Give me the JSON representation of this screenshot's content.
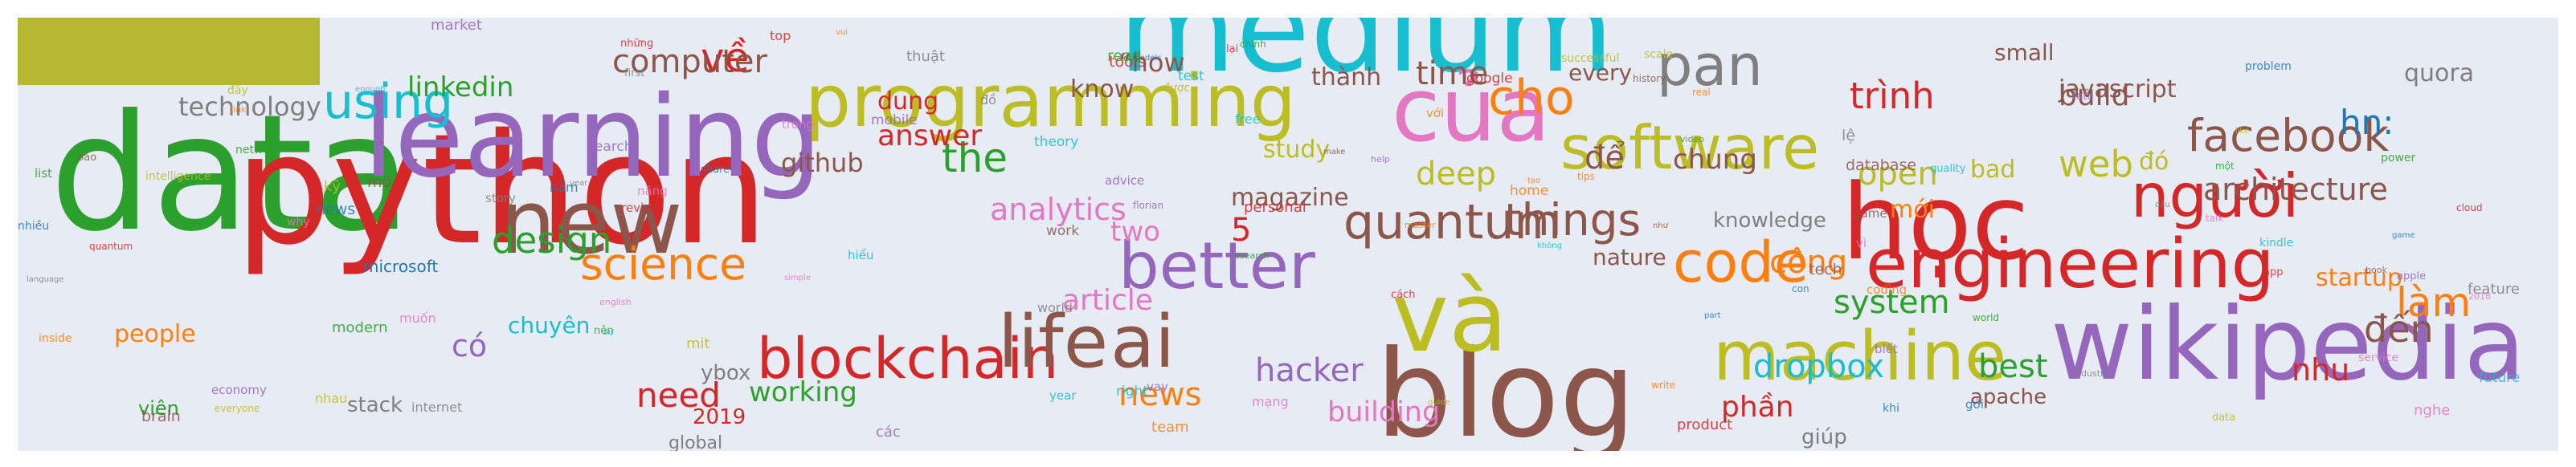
{
  "palette": {
    "background": "#e7ebf4",
    "swatch": "#b6b834",
    "colors": [
      "#2ca02c",
      "#d62728",
      "#9467bd",
      "#17becf",
      "#bcbd22",
      "#e377c2",
      "#ff7f0e",
      "#8c564b",
      "#1f77b4",
      "#7f7f7f"
    ]
  },
  "cloud": {
    "words": [
      {
        "text": "data",
        "color": "#2ca02c"
      },
      {
        "text": "python",
        "color": "#d62728"
      },
      {
        "text": "learning",
        "color": "#9467bd"
      },
      {
        "text": "medium",
        "color": "#17becf"
      },
      {
        "text": "blog",
        "color": "#8c564b"
      },
      {
        "text": "wikipedia",
        "color": "#9467bd"
      },
      {
        "text": "học",
        "color": "#d62728"
      },
      {
        "text": "và",
        "color": "#bcbd22"
      },
      {
        "text": "của",
        "color": "#e377c2"
      },
      {
        "text": "new",
        "color": "#8c564b"
      },
      {
        "text": "programming",
        "color": "#bcbd22"
      },
      {
        "text": "engineering",
        "color": "#d62728"
      },
      {
        "text": "machine",
        "color": "#bcbd22"
      },
      {
        "text": "blockchain",
        "color": "#d62728"
      },
      {
        "text": "life",
        "color": "#8c564b"
      },
      {
        "text": "ai",
        "color": "#8c564b"
      },
      {
        "text": "better",
        "color": "#9467bd"
      },
      {
        "text": "code",
        "color": "#ff7f0e"
      },
      {
        "text": "software",
        "color": "#bcbd22"
      },
      {
        "text": "người",
        "color": "#d62728"
      },
      {
        "text": "facebook",
        "color": "#8c564b"
      },
      {
        "text": "quantum",
        "color": "#8c564b"
      },
      {
        "text": "science",
        "color": "#ff7f0e"
      },
      {
        "text": "using",
        "color": "#17becf"
      },
      {
        "text": "design",
        "color": "#2ca02c"
      },
      {
        "text": "web",
        "color": "#bcbd22"
      },
      {
        "text": "system",
        "color": "#2ca02c"
      },
      {
        "text": "hacker",
        "color": "#9467bd"
      },
      {
        "text": "building",
        "color": "#e377c2"
      },
      {
        "text": "về",
        "color": "#d62728"
      },
      {
        "text": "computer",
        "color": "#8c564b"
      },
      {
        "text": "pan",
        "color": "#7f7f7f"
      },
      {
        "text": "time",
        "color": "#8c564b"
      },
      {
        "text": "cho",
        "color": "#ff7f0e"
      },
      {
        "text": "deep",
        "color": "#bcbd22"
      },
      {
        "text": "things",
        "color": "#8c564b"
      },
      {
        "text": "the",
        "color": "#2ca02c"
      },
      {
        "text": "technology",
        "color": "#7f7f7f"
      },
      {
        "text": "linkedin",
        "color": "#2ca02c"
      },
      {
        "text": "answer",
        "color": "#d62728"
      },
      {
        "text": "github",
        "color": "#8c564b"
      },
      {
        "text": "need",
        "color": "#d62728"
      },
      {
        "text": "working",
        "color": "#2ca02c"
      },
      {
        "text": "trình",
        "color": "#d62728"
      },
      {
        "text": "build",
        "color": "#8c564b"
      },
      {
        "text": "javascript",
        "color": "#8c564b"
      },
      {
        "text": "quora",
        "color": "#7f7f7f"
      },
      {
        "text": "architecture",
        "color": "#8c564b"
      },
      {
        "text": "dropbox",
        "color": "#17becf"
      },
      {
        "text": "phần",
        "color": "#d62728"
      },
      {
        "text": "làm",
        "color": "#ff7f0e"
      },
      {
        "text": "đến",
        "color": "#8c564b"
      },
      {
        "text": "nhu",
        "color": "#d62728"
      },
      {
        "text": "analytics",
        "color": "#e377c2"
      },
      {
        "text": "article",
        "color": "#e377c2"
      },
      {
        "text": "news",
        "color": "#ff7f0e"
      },
      {
        "text": "open",
        "color": "#bcbd22"
      },
      {
        "text": "công",
        "color": "#ff7f0e"
      },
      {
        "text": "chung",
        "color": "#8c564b"
      },
      {
        "text": "để",
        "color": "#8c564b"
      },
      {
        "text": "best",
        "color": "#2ca02c"
      },
      {
        "text": "people",
        "color": "#ff7f0e"
      },
      {
        "text": "startup",
        "color": "#ff7f0e"
      },
      {
        "text": "viên",
        "color": "#2ca02c"
      },
      {
        "text": "chuyên",
        "color": "#17becf"
      },
      {
        "text": "có",
        "color": "#9467bd"
      },
      {
        "text": "two",
        "color": "#e377c2"
      },
      {
        "text": "5",
        "color": "#d62728"
      },
      {
        "text": "magazine",
        "color": "#8c564b"
      },
      {
        "text": "knowledge",
        "color": "#7f7f7f"
      },
      {
        "text": "nature",
        "color": "#8c564b"
      },
      {
        "text": "dung",
        "color": "#d62728"
      },
      {
        "text": "know",
        "color": "#8c564b"
      },
      {
        "text": "study",
        "color": "#bcbd22"
      },
      {
        "text": "thành",
        "color": "#8c564b"
      },
      {
        "text": "“how",
        "color": "#8c564b"
      },
      {
        "text": "every",
        "color": "#8c564b"
      },
      {
        "text": "small",
        "color": "#8c564b"
      },
      {
        "text": "global",
        "color": "#7f7f7f"
      },
      {
        "text": "bad",
        "color": "#bcbd22"
      },
      {
        "text": "mới",
        "color": "#ff7f0e"
      },
      {
        "text": "microsoft",
        "color": "#1f77b4"
      },
      {
        "text": "stack",
        "color": "#7f7f7f"
      },
      {
        "text": "2019",
        "color": "#d62728"
      },
      {
        "text": "ybox",
        "color": "#7f7f7f"
      },
      {
        "text": "apache",
        "color": "#8c564b"
      },
      {
        "text": "giúp",
        "color": "#7f7f7f"
      },
      {
        "text": "hn:",
        "color": "#1f77b4"
      },
      {
        "text": "đó",
        "color": "#bcbd22"
      }
    ],
    "filler": [
      "research",
      "review",
      "economy",
      "theory",
      "scale",
      "english",
      "master",
      "brain",
      "news",
      "story",
      "video",
      "cloud",
      "help",
      "quality",
      "everyone",
      "talk",
      "home",
      "history",
      "models",
      "world",
      "power",
      "personal",
      "florian",
      "sự",
      "mit",
      "nghe",
      "coding",
      "bảo",
      "năm",
      "lệ",
      "list",
      "tools",
      "vay",
      "test",
      "like",
      "muốn",
      "write",
      "free",
      "neural",
      "industry",
      "chính",
      "lại",
      "search",
      "enough",
      "successful",
      "why",
      "inside",
      "database",
      "con",
      "thuật",
      "source",
      "top",
      "advice",
      "kindle",
      "nhau",
      "mạng",
      "team",
      "work",
      "gói",
      "feature",
      "read",
      "cách",
      "biết",
      "right",
      "intelligence",
      "2018",
      "real",
      "make",
      "game",
      "đồ",
      "nên",
      "app",
      "rate",
      "year",
      "đây",
      "năng",
      "vui",
      "game",
      "problem",
      "year",
      "modern",
      "quantum",
      "mobile",
      "free",
      "data",
      "service",
      "link",
      "tech",
      "share",
      "internet",
      "world",
      "google",
      "apple",
      "hiểu",
      "kỹ",
      "vì",
      "tạo",
      "mô",
      "khi",
      "đầu",
      "một",
      "những",
      "các",
      "không",
      "được",
      "trong",
      "với",
      "như",
      "nhiều",
      "language",
      "network",
      "product",
      "market",
      "future",
      "guide",
      "simple",
      "tips",
      "book",
      "part",
      "first"
    ]
  }
}
